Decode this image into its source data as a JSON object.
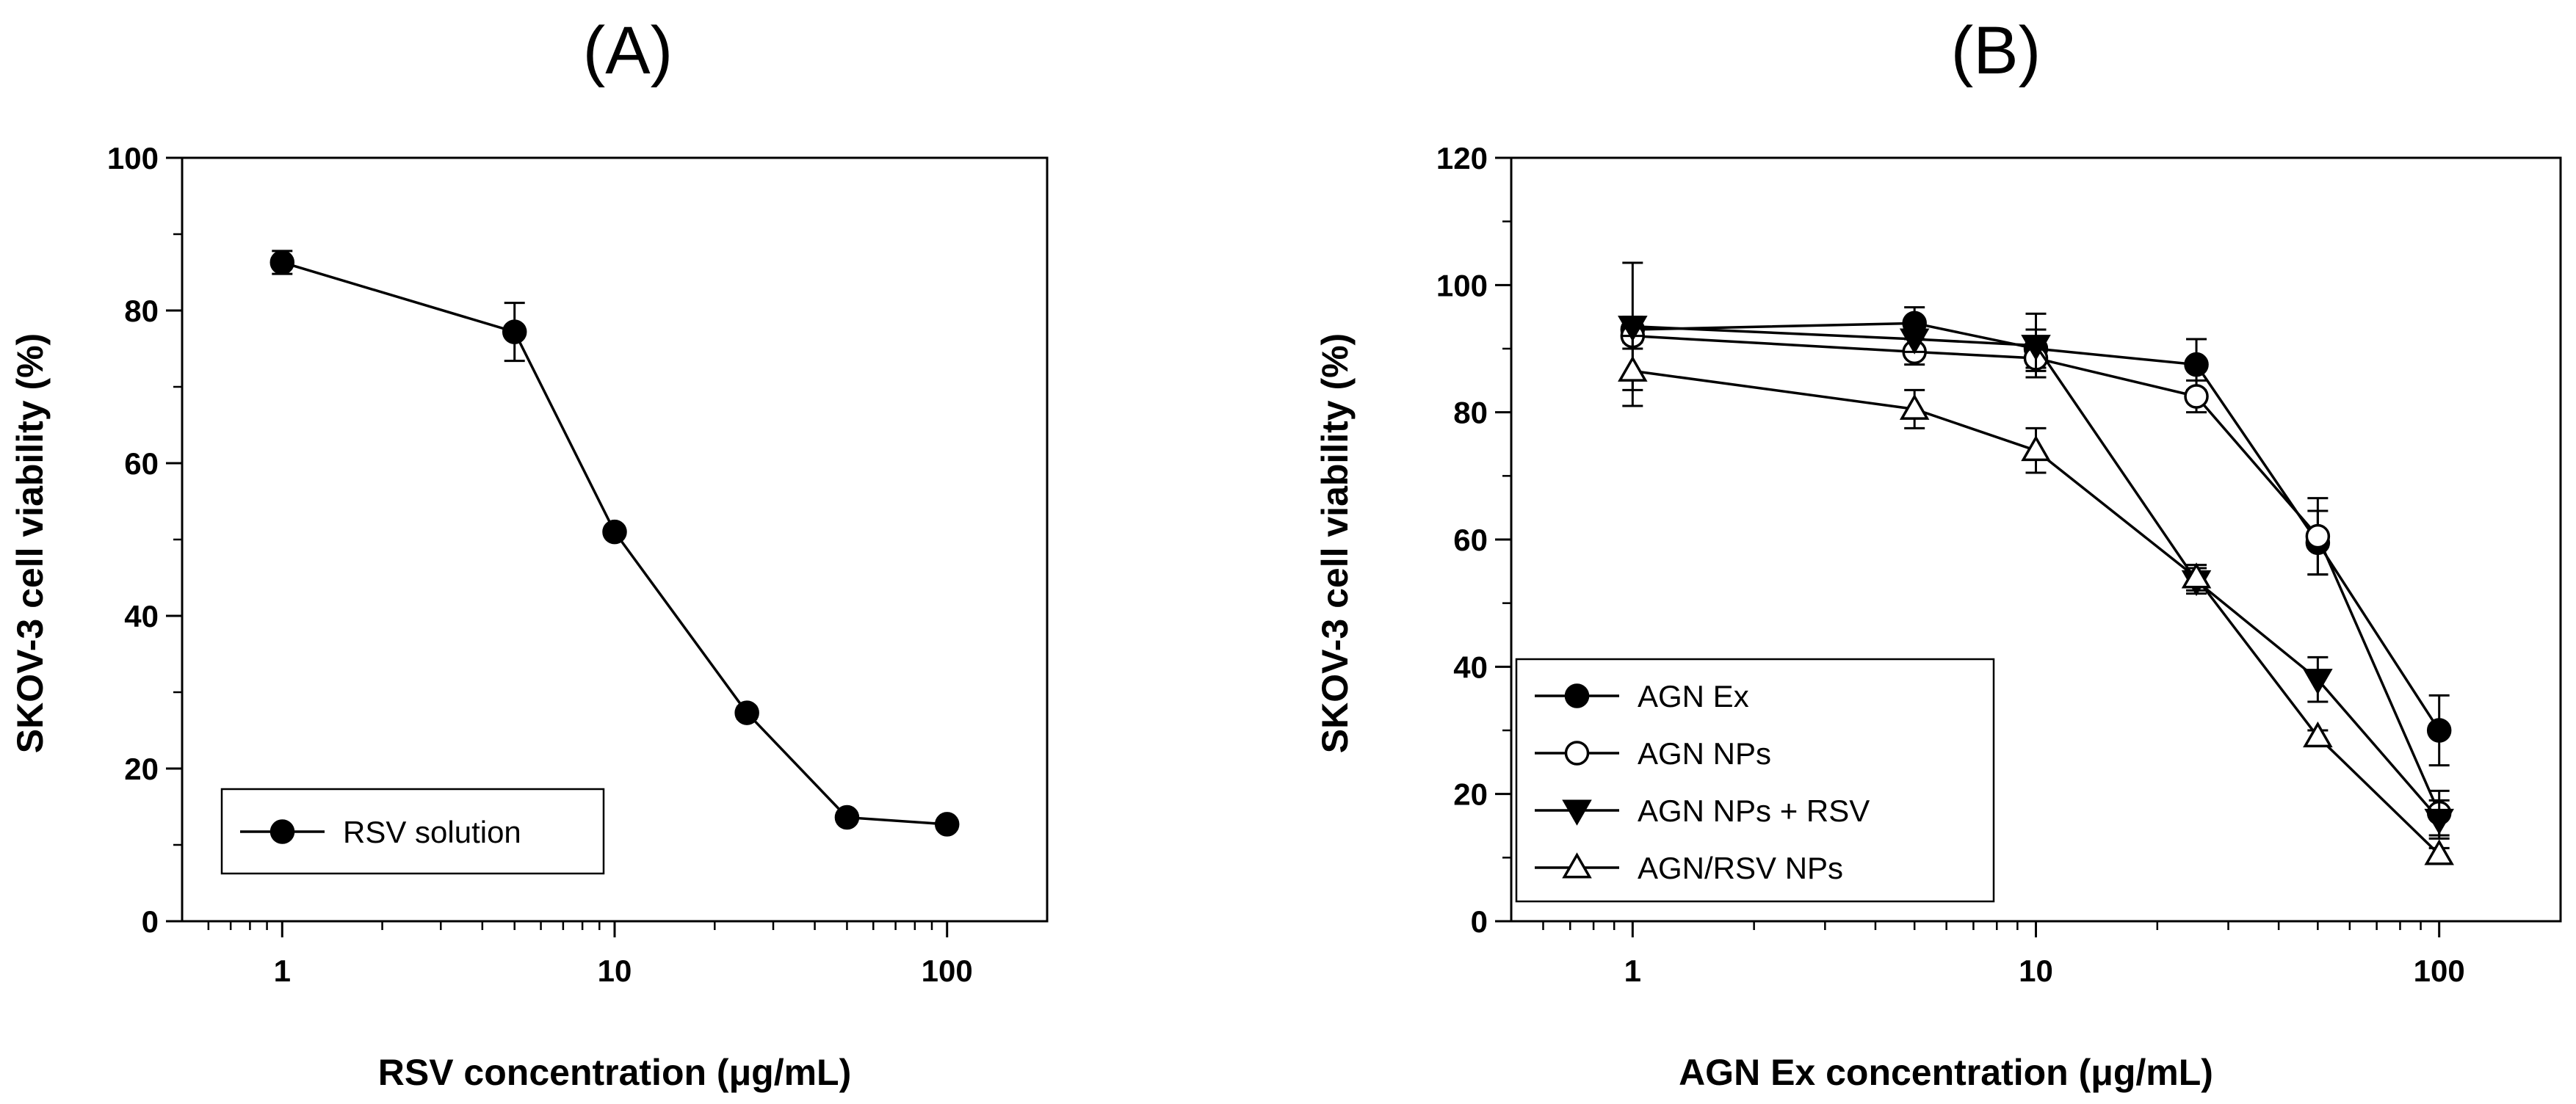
{
  "chart_data": [
    {
      "panel": "(A)",
      "type": "line",
      "xscale": "log",
      "xlabel": "RSV concentration (μg/mL)",
      "ylabel": "SKOV-3 cell viability (%)",
      "xlim": [
        0.5,
        200
      ],
      "ylim": [
        0,
        100
      ],
      "xticks": [
        1,
        10,
        100
      ],
      "xtick_labels": [
        "1",
        "10",
        "100"
      ],
      "yticks": [
        0,
        20,
        40,
        60,
        80,
        100
      ],
      "ytick_labels": [
        "0",
        "20",
        "40",
        "60",
        "80",
        "100"
      ],
      "grid": false,
      "legend_position": "bottom-left",
      "series": [
        {
          "name": "RSV solution",
          "marker": "filled-circle",
          "x": [
            1,
            5,
            10,
            25,
            50,
            100
          ],
          "y": [
            86.3,
            77.2,
            51.0,
            27.3,
            13.6,
            12.7
          ],
          "err": [
            1.5,
            3.8,
            0.5,
            0.8,
            0.6,
            0.6
          ]
        }
      ]
    },
    {
      "panel": "(B)",
      "type": "line",
      "xscale": "log",
      "xlabel": "AGN Ex concentration (μg/mL)",
      "ylabel": "SKOV-3 cell viability (%)",
      "xlim": [
        0.5,
        200
      ],
      "ylim": [
        0,
        120
      ],
      "xticks": [
        1,
        10,
        100
      ],
      "xtick_labels": [
        "1",
        "10",
        "100"
      ],
      "yticks": [
        0,
        20,
        40,
        60,
        80,
        100,
        120
      ],
      "ytick_labels": [
        "0",
        "20",
        "40",
        "60",
        "80",
        "100",
        "120"
      ],
      "grid": false,
      "legend_position": "bottom-left",
      "series": [
        {
          "name": "AGN Ex",
          "marker": "filled-circle",
          "x": [
            1,
            5,
            10,
            25,
            50,
            100
          ],
          "y": [
            93.0,
            94.0,
            90.0,
            87.5,
            59.5,
            30.0
          ],
          "err": [
            2.0,
            2.5,
            3.0,
            4.0,
            5.0,
            5.5
          ]
        },
        {
          "name": "AGN NPs",
          "marker": "open-circle",
          "x": [
            1,
            5,
            10,
            25,
            50,
            100
          ],
          "y": [
            92.0,
            89.5,
            88.5,
            82.5,
            60.5,
            17.0
          ],
          "err": [
            2.0,
            2.0,
            2.0,
            2.5,
            6.0,
            3.5
          ]
        },
        {
          "name": "AGN NPs + RSV",
          "marker": "filled-triangle-down",
          "x": [
            1,
            5,
            10,
            25,
            50,
            100
          ],
          "y": [
            93.5,
            91.5,
            90.5,
            53.5,
            38.0,
            16.0
          ],
          "err": [
            10.0,
            2.0,
            5.0,
            2.0,
            3.5,
            3.0
          ]
        },
        {
          "name": "AGN/RSV NPs",
          "marker": "open-triangle-up",
          "x": [
            1,
            5,
            10,
            25,
            50,
            100
          ],
          "y": [
            86.5,
            80.5,
            74.0,
            54.0,
            29.0,
            10.5
          ],
          "err": [
            5.5,
            3.0,
            3.5,
            2.0,
            1.0,
            1.0
          ]
        }
      ]
    }
  ]
}
